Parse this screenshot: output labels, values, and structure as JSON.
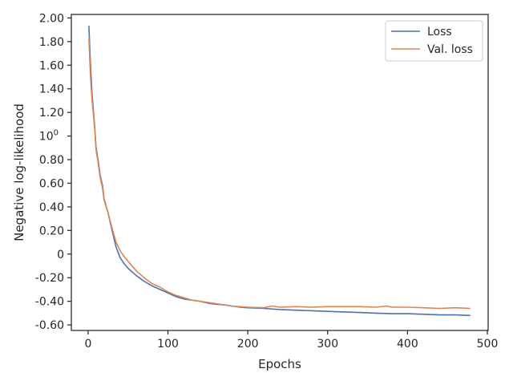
{
  "chart_data": {
    "type": "line",
    "xlabel": "Epochs",
    "ylabel": "Negative log-likelihood",
    "xlim": [
      -21,
      501
    ],
    "ylim": [
      -0.647,
      2.03
    ],
    "x_ticks": [
      {
        "value": 0,
        "label": "0"
      },
      {
        "value": 100,
        "label": "100"
      },
      {
        "value": 200,
        "label": "200"
      },
      {
        "value": 300,
        "label": "300"
      },
      {
        "value": 400,
        "label": "400"
      },
      {
        "value": 500,
        "label": "500"
      }
    ],
    "y_ticks": [
      {
        "value": 2.0,
        "label": "2.00"
      },
      {
        "value": 1.8,
        "label": "1.80"
      },
      {
        "value": 1.6,
        "label": "1.60"
      },
      {
        "value": 1.4,
        "label": "1.40"
      },
      {
        "value": 1.2,
        "label": "1.20"
      },
      {
        "value": 1.0,
        "label": "10",
        "sup": "0"
      },
      {
        "value": 0.8,
        "label": "0.80"
      },
      {
        "value": 0.6,
        "label": "0.60"
      },
      {
        "value": 0.4,
        "label": "0.40"
      },
      {
        "value": 0.2,
        "label": "0.20"
      },
      {
        "value": 0.0,
        "label": "0"
      },
      {
        "value": -0.2,
        "label": "-0.20"
      },
      {
        "value": -0.4,
        "label": "-0.40"
      },
      {
        "value": -0.6,
        "label": "-0.60"
      }
    ],
    "grid": false,
    "legend_position": "top-right",
    "series": [
      {
        "name": "Loss",
        "color": "#4c72b0",
        "x": [
          1,
          3,
          5,
          8,
          10,
          13,
          15,
          18,
          20,
          25,
          30,
          35,
          40,
          45,
          50,
          60,
          70,
          80,
          90,
          100,
          110,
          120,
          130,
          140,
          150,
          160,
          170,
          180,
          190,
          200,
          220,
          240,
          260,
          280,
          300,
          320,
          340,
          360,
          380,
          400,
          420,
          440,
          460,
          478
        ],
        "y": [
          1.93,
          1.6,
          1.35,
          1.1,
          0.9,
          0.77,
          0.67,
          0.58,
          0.47,
          0.35,
          0.2,
          0.06,
          -0.03,
          -0.08,
          -0.12,
          -0.18,
          -0.23,
          -0.27,
          -0.3,
          -0.33,
          -0.36,
          -0.38,
          -0.39,
          -0.4,
          -0.415,
          -0.425,
          -0.43,
          -0.44,
          -0.45,
          -0.455,
          -0.46,
          -0.47,
          -0.475,
          -0.48,
          -0.485,
          -0.49,
          -0.495,
          -0.5,
          -0.505,
          -0.505,
          -0.51,
          -0.515,
          -0.515,
          -0.52
        ]
      },
      {
        "name": "Val. loss",
        "color": "#dd8452",
        "x": [
          1,
          3,
          5,
          8,
          10,
          13,
          15,
          18,
          20,
          25,
          30,
          35,
          40,
          45,
          50,
          60,
          70,
          80,
          90,
          100,
          110,
          120,
          130,
          140,
          150,
          160,
          170,
          180,
          190,
          200,
          220,
          230,
          240,
          260,
          280,
          300,
          320,
          340,
          360,
          375,
          380,
          400,
          420,
          440,
          460,
          478
        ],
        "y": [
          1.83,
          1.5,
          1.3,
          1.08,
          0.88,
          0.75,
          0.65,
          0.56,
          0.46,
          0.35,
          0.22,
          0.1,
          0.03,
          -0.02,
          -0.06,
          -0.14,
          -0.2,
          -0.25,
          -0.28,
          -0.32,
          -0.35,
          -0.37,
          -0.39,
          -0.4,
          -0.41,
          -0.42,
          -0.43,
          -0.44,
          -0.445,
          -0.45,
          -0.455,
          -0.44,
          -0.45,
          -0.445,
          -0.45,
          -0.445,
          -0.445,
          -0.445,
          -0.45,
          -0.44,
          -0.45,
          -0.45,
          -0.455,
          -0.46,
          -0.455,
          -0.46
        ]
      }
    ]
  }
}
